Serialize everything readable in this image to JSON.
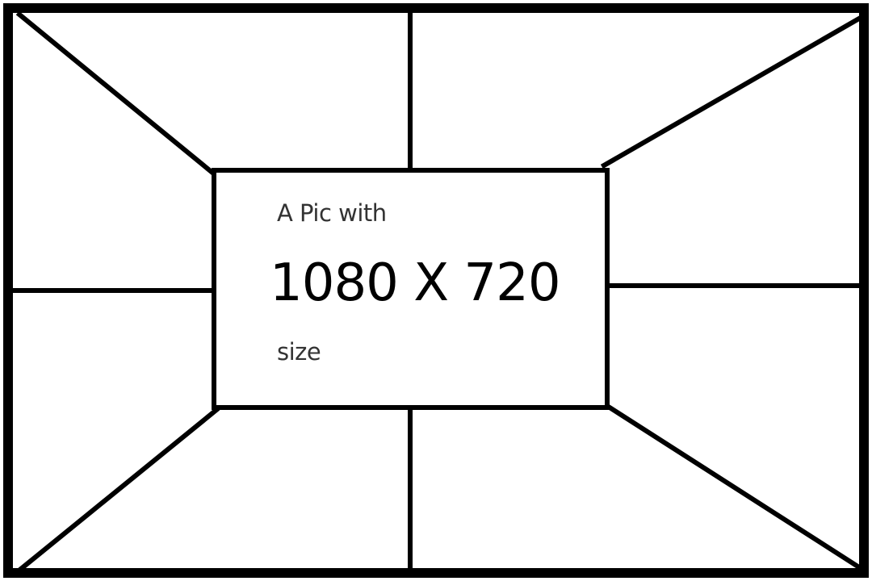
{
  "diagram": {
    "caption": {
      "line1": "A Pic with",
      "line2": "1080 X 720",
      "line3": "size"
    },
    "colors": {
      "background": "#ffffff",
      "stroke": "#000000",
      "small_text": "#333333",
      "large_text": "#000000"
    }
  }
}
